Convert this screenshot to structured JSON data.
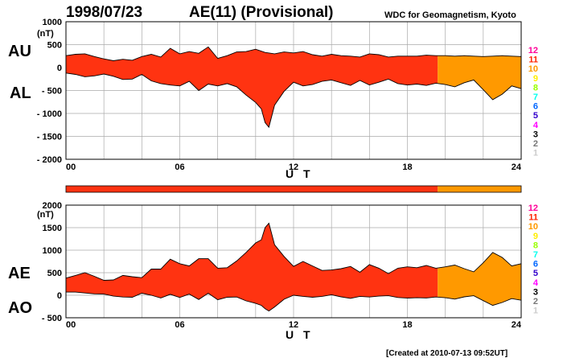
{
  "header": {
    "date": "1998/07/23",
    "title": "AE(11) (Provisional)",
    "org": "WDC for Geomagnetism, Kyoto"
  },
  "footer": {
    "created": "[Created at 2010-07-13 09:52UT]"
  },
  "colors": {
    "red": "#ff3311",
    "orange": "#ff9900",
    "grid": "#aaaaaa"
  },
  "color_key": [
    {
      "label": "12",
      "color": "#ff0099"
    },
    {
      "label": "11",
      "color": "#ff2200"
    },
    {
      "label": "10",
      "color": "#ff9900"
    },
    {
      "label": "9",
      "color": "#ffee00"
    },
    {
      "label": "8",
      "color": "#99ff00"
    },
    {
      "label": "7",
      "color": "#00ffee"
    },
    {
      "label": "6",
      "color": "#0066ff"
    },
    {
      "label": "5",
      "color": "#3300cc"
    },
    {
      "label": "4",
      "color": "#ff00ff"
    },
    {
      "label": "3",
      "color": "#000000"
    },
    {
      "label": "2",
      "color": "#777777"
    },
    {
      "label": "1",
      "color": "#cccccc"
    }
  ],
  "status_bar": {
    "switch_hour": 19.6
  },
  "chart_data": [
    {
      "type": "area",
      "id": "au-al",
      "labels": {
        "upper": "AU",
        "lower": "AL"
      },
      "unit": "(nT)",
      "xlabel": "U T",
      "xlim": [
        0,
        24
      ],
      "ylim": [
        -2000,
        1000
      ],
      "x_ticks": [
        "00",
        "06",
        "12",
        "18",
        "24"
      ],
      "y_ticks": [
        {
          "v": 1000,
          "label": "1000"
        },
        {
          "v": 500,
          "label": "500"
        },
        {
          "v": 0,
          "label": "0"
        },
        {
          "v": -500,
          "label": "- 500"
        },
        {
          "v": -1000,
          "label": "- 1000"
        },
        {
          "v": -1500,
          "label": "- 1500"
        },
        {
          "v": -2000,
          "label": "- 2000"
        }
      ],
      "orange_from_hour": 19.6,
      "series": [
        {
          "name": "AU",
          "points": [
            [
              0,
              260
            ],
            [
              0.5,
              290
            ],
            [
              1,
              300
            ],
            [
              1.5,
              240
            ],
            [
              2,
              190
            ],
            [
              2.5,
              150
            ],
            [
              3,
              180
            ],
            [
              3.5,
              160
            ],
            [
              4,
              240
            ],
            [
              4.5,
              290
            ],
            [
              5,
              230
            ],
            [
              5.5,
              420
            ],
            [
              6,
              300
            ],
            [
              6.5,
              350
            ],
            [
              7,
              310
            ],
            [
              7.5,
              450
            ],
            [
              8,
              200
            ],
            [
              8.5,
              260
            ],
            [
              9,
              340
            ],
            [
              9.5,
              350
            ],
            [
              10,
              400
            ],
            [
              10.5,
              330
            ],
            [
              11,
              300
            ],
            [
              11.5,
              340
            ],
            [
              12,
              320
            ],
            [
              12.5,
              350
            ],
            [
              13,
              280
            ],
            [
              13.5,
              250
            ],
            [
              14,
              290
            ],
            [
              14.5,
              260
            ],
            [
              15,
              250
            ],
            [
              15.5,
              230
            ],
            [
              16,
              300
            ],
            [
              16.5,
              280
            ],
            [
              17,
              230
            ],
            [
              17.5,
              250
            ],
            [
              18,
              250
            ],
            [
              18.5,
              250
            ],
            [
              19,
              270
            ],
            [
              19.5,
              260
            ],
            [
              20,
              260
            ],
            [
              20.5,
              250
            ],
            [
              21,
              260
            ],
            [
              21.5,
              250
            ],
            [
              22,
              240
            ],
            [
              22.5,
              250
            ],
            [
              23,
              260
            ],
            [
              23.5,
              250
            ],
            [
              24,
              240
            ]
          ]
        },
        {
          "name": "AL",
          "points": [
            [
              0,
              -120
            ],
            [
              0.5,
              -150
            ],
            [
              1,
              -200
            ],
            [
              1.5,
              -180
            ],
            [
              2,
              -140
            ],
            [
              2.5,
              -190
            ],
            [
              3,
              -260
            ],
            [
              3.5,
              -250
            ],
            [
              4,
              -150
            ],
            [
              4.5,
              -290
            ],
            [
              5,
              -350
            ],
            [
              5.5,
              -380
            ],
            [
              6,
              -400
            ],
            [
              6.5,
              -300
            ],
            [
              7,
              -500
            ],
            [
              7.5,
              -360
            ],
            [
              8,
              -400
            ],
            [
              8.5,
              -350
            ],
            [
              9,
              -420
            ],
            [
              9.5,
              -600
            ],
            [
              10,
              -760
            ],
            [
              10.3,
              -900
            ],
            [
              10.5,
              -1200
            ],
            [
              10.7,
              -1300
            ],
            [
              11,
              -820
            ],
            [
              11.5,
              -520
            ],
            [
              12,
              -320
            ],
            [
              12.5,
              -400
            ],
            [
              13,
              -370
            ],
            [
              13.5,
              -300
            ],
            [
              14,
              -270
            ],
            [
              14.5,
              -330
            ],
            [
              15,
              -390
            ],
            [
              15.5,
              -280
            ],
            [
              16,
              -380
            ],
            [
              16.5,
              -320
            ],
            [
              17,
              -250
            ],
            [
              17.5,
              -350
            ],
            [
              18,
              -380
            ],
            [
              18.5,
              -360
            ],
            [
              19,
              -390
            ],
            [
              19.5,
              -340
            ],
            [
              20,
              -370
            ],
            [
              20.5,
              -420
            ],
            [
              21,
              -330
            ],
            [
              21.5,
              -270
            ],
            [
              22,
              -480
            ],
            [
              22.5,
              -700
            ],
            [
              23,
              -580
            ],
            [
              23.5,
              -400
            ],
            [
              24,
              -460
            ]
          ]
        }
      ]
    },
    {
      "type": "area",
      "id": "ae-ao",
      "labels": {
        "upper": "AE",
        "lower": "AO"
      },
      "unit": "(nT)",
      "xlabel": "U T",
      "xlim": [
        0,
        24
      ],
      "ylim": [
        -500,
        2000
      ],
      "x_ticks": [
        "00",
        "06",
        "12",
        "18",
        "24"
      ],
      "y_ticks": [
        {
          "v": 2000,
          "label": "2000"
        },
        {
          "v": 1500,
          "label": "1500"
        },
        {
          "v": 1000,
          "label": "1000"
        },
        {
          "v": 500,
          "label": "500"
        },
        {
          "v": 0,
          "label": "0"
        },
        {
          "v": -500,
          "label": "- 500"
        }
      ],
      "orange_from_hour": 19.6,
      "series": [
        {
          "name": "AE",
          "points": [
            [
              0,
              380
            ],
            [
              0.5,
              440
            ],
            [
              1,
              500
            ],
            [
              1.5,
              420
            ],
            [
              2,
              330
            ],
            [
              2.5,
              340
            ],
            [
              3,
              440
            ],
            [
              3.5,
              410
            ],
            [
              4,
              390
            ],
            [
              4.5,
              580
            ],
            [
              5,
              580
            ],
            [
              5.5,
              800
            ],
            [
              6,
              700
            ],
            [
              6.5,
              650
            ],
            [
              7,
              810
            ],
            [
              7.5,
              810
            ],
            [
              8,
              600
            ],
            [
              8.5,
              610
            ],
            [
              9,
              760
            ],
            [
              9.5,
              950
            ],
            [
              10,
              1160
            ],
            [
              10.3,
              1230
            ],
            [
              10.5,
              1500
            ],
            [
              10.7,
              1600
            ],
            [
              11,
              1120
            ],
            [
              11.5,
              860
            ],
            [
              12,
              640
            ],
            [
              12.5,
              750
            ],
            [
              13,
              650
            ],
            [
              13.5,
              550
            ],
            [
              14,
              560
            ],
            [
              14.5,
              590
            ],
            [
              15,
              640
            ],
            [
              15.5,
              510
            ],
            [
              16,
              680
            ],
            [
              16.5,
              600
            ],
            [
              17,
              480
            ],
            [
              17.5,
              600
            ],
            [
              18,
              630
            ],
            [
              18.5,
              610
            ],
            [
              19,
              660
            ],
            [
              19.5,
              600
            ],
            [
              20,
              630
            ],
            [
              20.5,
              670
            ],
            [
              21,
              590
            ],
            [
              21.5,
              520
            ],
            [
              22,
              720
            ],
            [
              22.5,
              950
            ],
            [
              23,
              840
            ],
            [
              23.5,
              650
            ],
            [
              24,
              700
            ]
          ]
        },
        {
          "name": "AO",
          "points": [
            [
              0,
              70
            ],
            [
              0.5,
              70
            ],
            [
              1,
              50
            ],
            [
              1.5,
              30
            ],
            [
              2,
              25
            ],
            [
              2.5,
              -20
            ],
            [
              3,
              -40
            ],
            [
              3.5,
              -45
            ],
            [
              4,
              45
            ],
            [
              4.5,
              0
            ],
            [
              5,
              -60
            ],
            [
              5.5,
              20
            ],
            [
              6,
              -50
            ],
            [
              6.5,
              25
            ],
            [
              7,
              -95
            ],
            [
              7.5,
              45
            ],
            [
              8,
              -100
            ],
            [
              8.5,
              -45
            ],
            [
              9,
              -40
            ],
            [
              9.5,
              -125
            ],
            [
              10,
              -180
            ],
            [
              10.3,
              -225
            ],
            [
              10.5,
              -300
            ],
            [
              10.7,
              -350
            ],
            [
              11,
              -260
            ],
            [
              11.5,
              -90
            ],
            [
              12,
              0
            ],
            [
              12.5,
              -25
            ],
            [
              13,
              -45
            ],
            [
              13.5,
              -25
            ],
            [
              14,
              10
            ],
            [
              14.5,
              -35
            ],
            [
              15,
              -70
            ],
            [
              15.5,
              -25
            ],
            [
              16,
              -40
            ],
            [
              16.5,
              -20
            ],
            [
              17,
              -10
            ],
            [
              17.5,
              -50
            ],
            [
              18,
              -65
            ],
            [
              18.5,
              -55
            ],
            [
              19,
              -60
            ],
            [
              19.5,
              -40
            ],
            [
              20,
              -55
            ],
            [
              20.5,
              -85
            ],
            [
              21,
              -35
            ],
            [
              21.5,
              -10
            ],
            [
              22,
              -120
            ],
            [
              22.5,
              -225
            ],
            [
              23,
              -160
            ],
            [
              23.5,
              -75
            ],
            [
              24,
              -110
            ]
          ]
        }
      ]
    }
  ]
}
